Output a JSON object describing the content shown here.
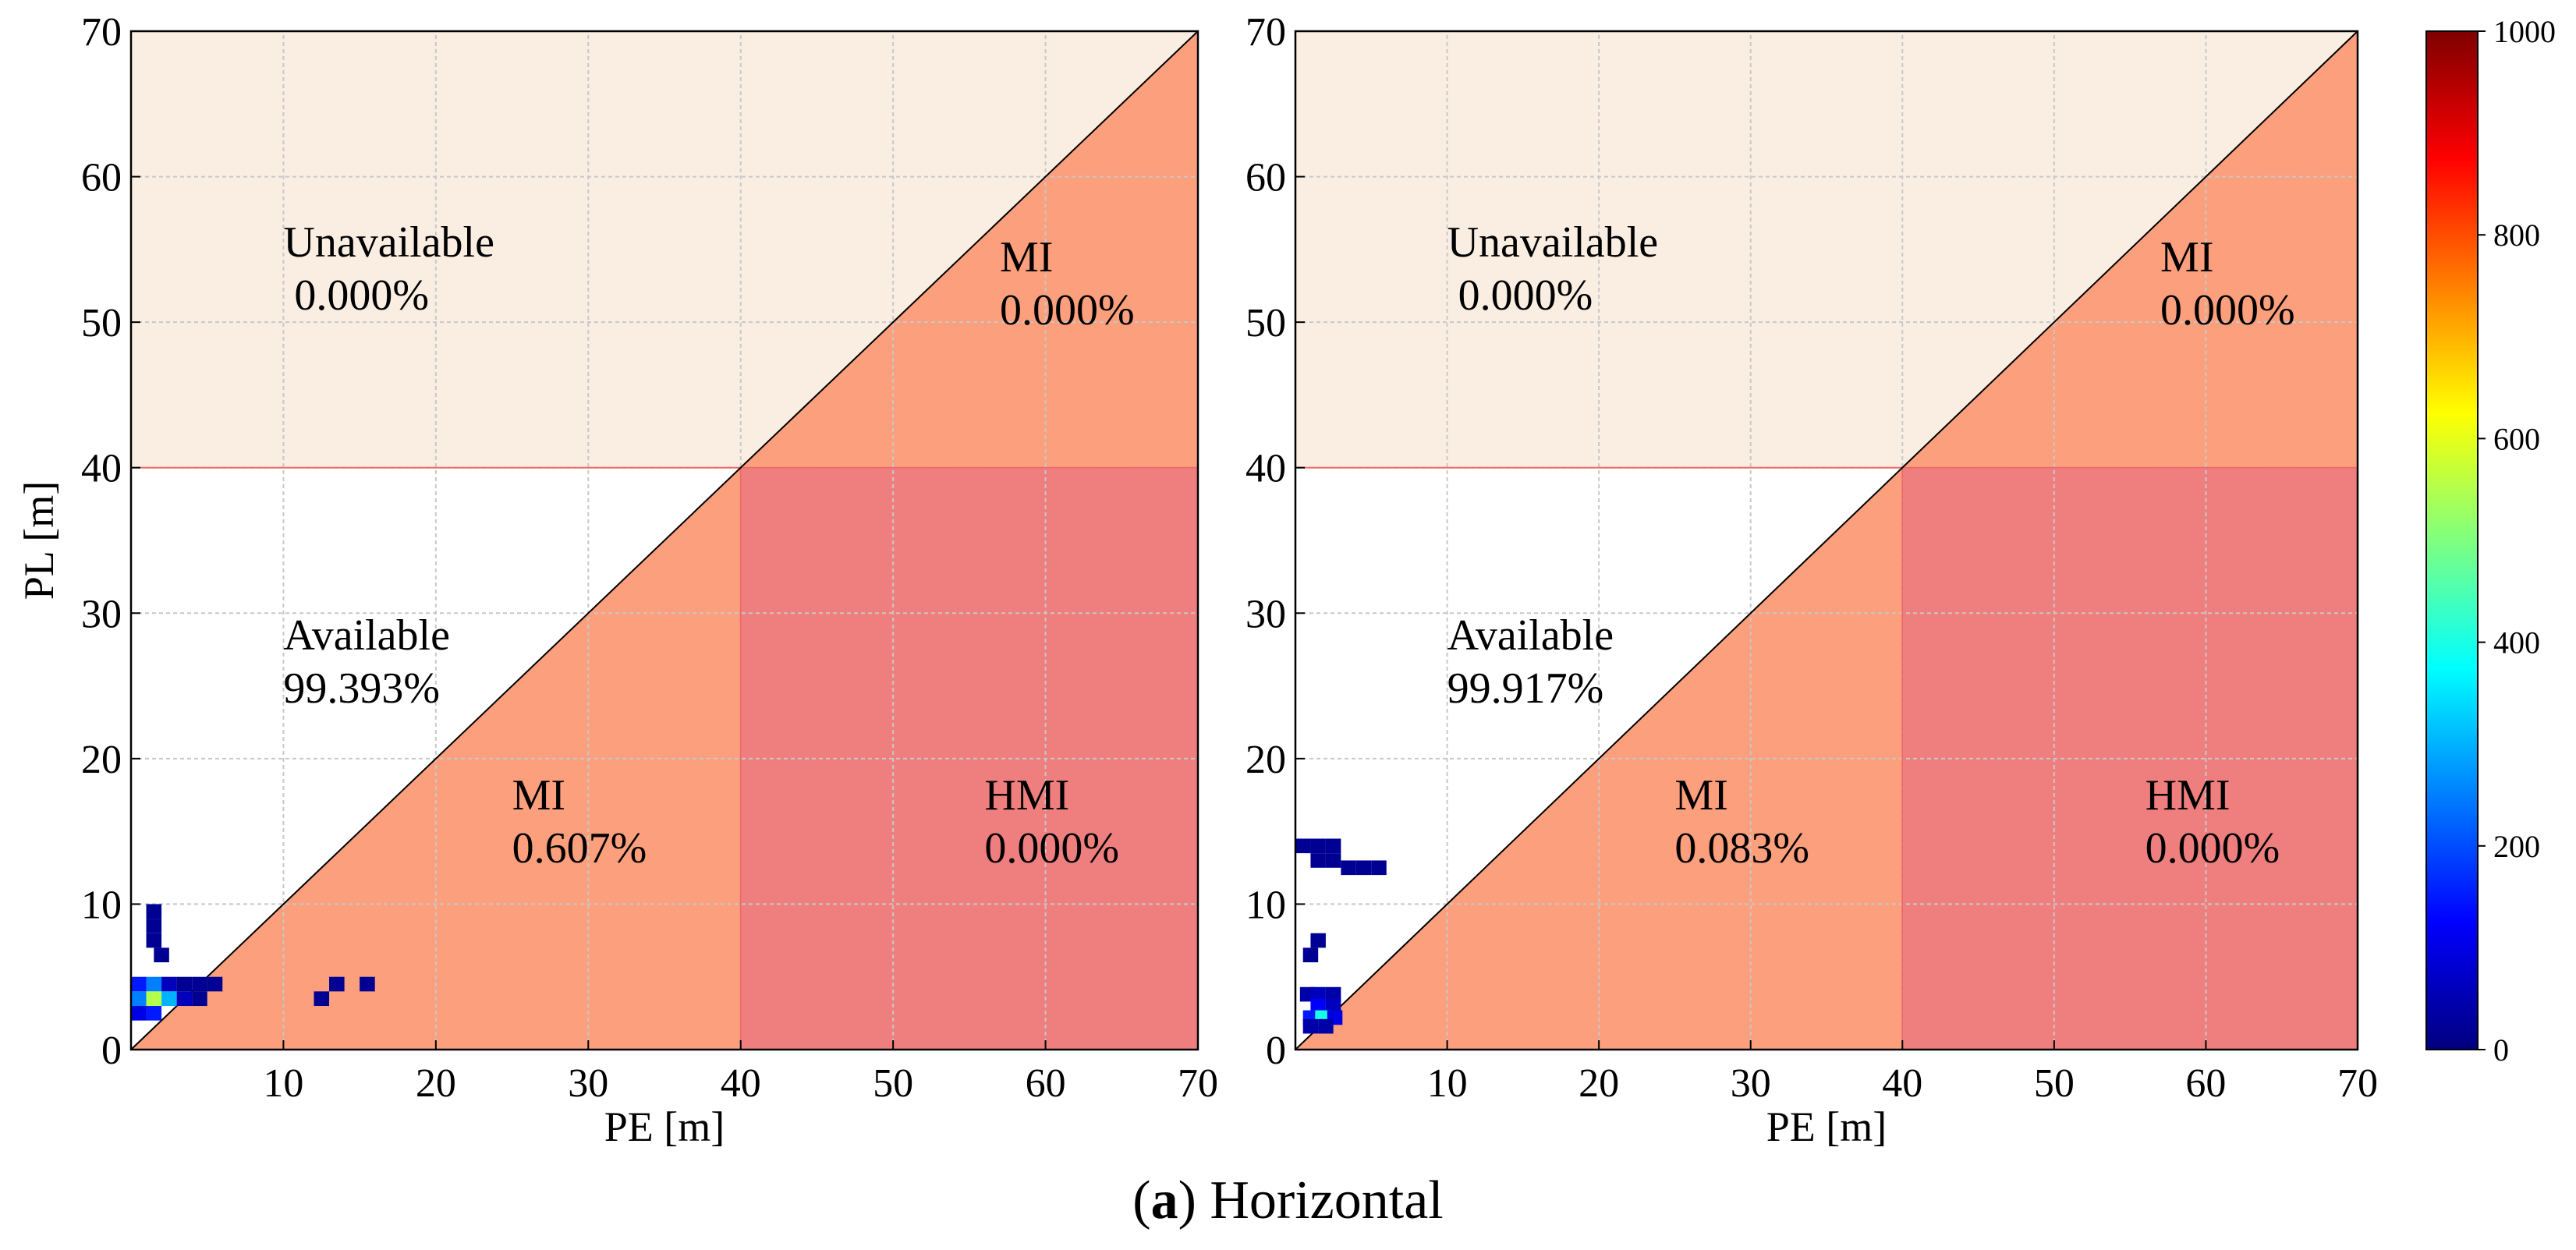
{
  "caption": {
    "letter": "a",
    "text": "Horizontal"
  },
  "colors": {
    "unavailable": "#faeee3",
    "mi": "#fc9f7d",
    "hmi": "#ef7f7f",
    "alert_line": "#ef6a6a",
    "grid": "#c8c8c8",
    "colormap": [
      "#00007f",
      "#0000ff",
      "#007fff",
      "#00ffff",
      "#7fff7f",
      "#ffff00",
      "#ff7f00",
      "#ff0000",
      "#7f0000"
    ]
  },
  "chart_data": [
    {
      "type": "heatmap",
      "xlabel": "PE [m]",
      "ylabel": "PL [m]",
      "xlim": [
        0,
        70
      ],
      "ylim": [
        0,
        70
      ],
      "xticks": [
        10,
        20,
        30,
        40,
        50,
        60,
        70
      ],
      "yticks": [
        0,
        10,
        20,
        30,
        40,
        50,
        60,
        70
      ],
      "alert_limit": 40,
      "grid": true,
      "regions": [
        {
          "name": "Unavailable",
          "value": "0.000%"
        },
        {
          "name": "MI (upper)",
          "value": "0.000%"
        },
        {
          "name": "Available",
          "value": "99.393%"
        },
        {
          "name": "MI",
          "value": "0.607%"
        },
        {
          "name": "HMI",
          "value": "0.000%"
        }
      ],
      "labels": {
        "unavailable": {
          "name": "Unavailable",
          "value": " 0.000%"
        },
        "mi_upper": {
          "name": "MI",
          "value": "0.000%"
        },
        "available": {
          "name": "Available",
          "value": "99.393%"
        },
        "mi_lower": {
          "name": "MI",
          "value": "0.607%"
        },
        "hmi": {
          "name": "HMI",
          "value": "0.000%"
        }
      },
      "bins": [
        [
          1.5,
          9.5,
          20
        ],
        [
          1.5,
          8.5,
          20
        ],
        [
          1.5,
          7.5,
          20
        ],
        [
          2,
          6.5,
          20
        ],
        [
          0.5,
          4.5,
          150
        ],
        [
          1.5,
          4.5,
          250
        ],
        [
          2.5,
          4.5,
          60
        ],
        [
          3.5,
          4.5,
          20
        ],
        [
          4.5,
          4.5,
          20
        ],
        [
          5.5,
          4.5,
          20
        ],
        [
          0.5,
          3.5,
          250
        ],
        [
          1.5,
          3.5,
          550
        ],
        [
          2.5,
          3.5,
          300
        ],
        [
          3.5,
          3.5,
          60
        ],
        [
          4.5,
          3.5,
          20
        ],
        [
          0.5,
          2.5,
          100
        ],
        [
          1.5,
          2.5,
          150
        ],
        [
          12.5,
          3.5,
          20
        ],
        [
          13.5,
          4.5,
          20
        ],
        [
          15.5,
          4.5,
          20
        ]
      ]
    },
    {
      "type": "heatmap",
      "xlabel": "PE [m]",
      "ylabel": "",
      "xlim": [
        0,
        70
      ],
      "ylim": [
        0,
        70
      ],
      "xticks": [
        10,
        20,
        30,
        40,
        50,
        60,
        70
      ],
      "yticks": [
        0,
        10,
        20,
        30,
        40,
        50,
        60,
        70
      ],
      "alert_limit": 40,
      "grid": true,
      "regions": [
        {
          "name": "Unavailable",
          "value": "0.000%"
        },
        {
          "name": "MI (upper)",
          "value": "0.000%"
        },
        {
          "name": "Available",
          "value": "99.917%"
        },
        {
          "name": "MI",
          "value": "0.083%"
        },
        {
          "name": "HMI",
          "value": "0.000%"
        }
      ],
      "labels": {
        "unavailable": {
          "name": "Unavailable",
          "value": " 0.000%"
        },
        "mi_upper": {
          "name": "MI",
          "value": "0.000%"
        },
        "available": {
          "name": "Available",
          "value": "99.917%"
        },
        "mi_lower": {
          "name": "MI",
          "value": "0.083%"
        },
        "hmi": {
          "name": "HMI",
          "value": "0.000%"
        }
      },
      "bins": [
        [
          0.5,
          14,
          20
        ],
        [
          1.5,
          14,
          20
        ],
        [
          2.5,
          14,
          20
        ],
        [
          1.5,
          13,
          20
        ],
        [
          2.5,
          13,
          20
        ],
        [
          3.5,
          12.5,
          20
        ],
        [
          4.5,
          12.5,
          20
        ],
        [
          5.5,
          12.5,
          20
        ],
        [
          1.5,
          7.5,
          20
        ],
        [
          1,
          6.5,
          20
        ],
        [
          0.8,
          3.8,
          40
        ],
        [
          1.5,
          3.8,
          60
        ],
        [
          2.5,
          3.8,
          40
        ],
        [
          1.5,
          3,
          120
        ],
        [
          2.5,
          3,
          60
        ],
        [
          1,
          2.2,
          150
        ],
        [
          1.8,
          2.2,
          400
        ],
        [
          2.6,
          2.2,
          100
        ],
        [
          1,
          1.6,
          40
        ],
        [
          2,
          1.6,
          40
        ]
      ]
    }
  ],
  "colorbar": {
    "min": 0,
    "max": 1000,
    "ticks": [
      0,
      200,
      400,
      600,
      800,
      1000
    ]
  }
}
